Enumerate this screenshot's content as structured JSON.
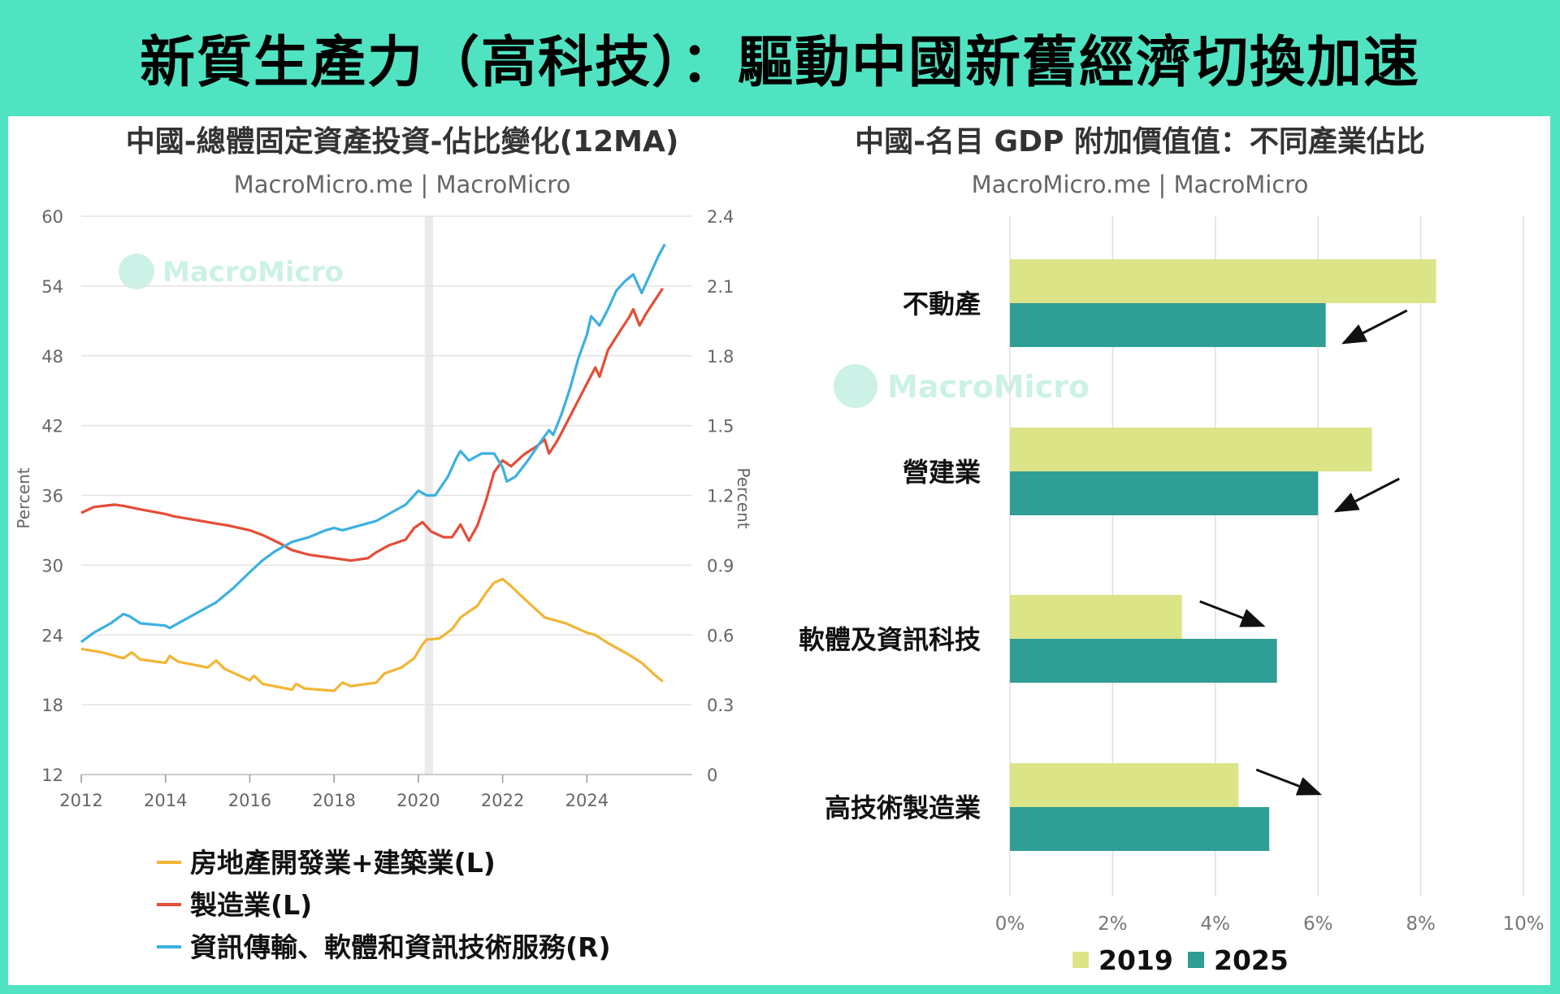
{
  "headline": "新質生產力（高科技）：驅動中國新舊經濟切換加速",
  "chart_data": [
    {
      "type": "line",
      "title": "中國-總體固定資產投資-佔比變化(12MA)",
      "subtitle": "MacroMicro.me | MacroMicro",
      "watermark": "MacroMicro",
      "ylabel_left": "Percent",
      "ylabel_right": "Percent",
      "ylim_left": [
        12,
        60
      ],
      "ylim_right": [
        0,
        2.4
      ],
      "yticks_left": [
        "60",
        "54",
        "48",
        "42",
        "36",
        "30",
        "24",
        "18",
        "12"
      ],
      "yticks_right": [
        "2.4",
        "2.1",
        "1.8",
        "1.5",
        "1.2",
        "0.9",
        "0.6",
        "0.3",
        "0"
      ],
      "xlim": [
        2012,
        2026.5
      ],
      "xticks": [
        "2012",
        "2014",
        "2016",
        "2018",
        "2020",
        "2022",
        "2024"
      ],
      "shaded_region": [
        2020.15,
        2020.35
      ],
      "grid": true,
      "legend_position": "bottom",
      "series": [
        {
          "name": "房地產開發業+建築業(L)",
          "axis": "left",
          "color": "#F2B535",
          "points": [
            [
              2012.0,
              22.8
            ],
            [
              2012.5,
              22.5
            ],
            [
              2013.0,
              22.0
            ],
            [
              2013.2,
              22.5
            ],
            [
              2013.4,
              21.9
            ],
            [
              2014.0,
              21.6
            ],
            [
              2014.1,
              22.2
            ],
            [
              2014.3,
              21.7
            ],
            [
              2015.0,
              21.2
            ],
            [
              2015.2,
              21.8
            ],
            [
              2015.4,
              21.1
            ],
            [
              2016.0,
              20.1
            ],
            [
              2016.1,
              20.5
            ],
            [
              2016.3,
              19.8
            ],
            [
              2017.0,
              19.3
            ],
            [
              2017.1,
              19.8
            ],
            [
              2017.3,
              19.4
            ],
            [
              2018.0,
              19.2
            ],
            [
              2018.2,
              19.9
            ],
            [
              2018.4,
              19.6
            ],
            [
              2019.0,
              19.9
            ],
            [
              2019.2,
              20.7
            ],
            [
              2019.6,
              21.2
            ],
            [
              2019.9,
              22.0
            ],
            [
              2020.1,
              23.2
            ],
            [
              2020.2,
              23.6
            ],
            [
              2020.5,
              23.7
            ],
            [
              2020.8,
              24.5
            ],
            [
              2021.0,
              25.5
            ],
            [
              2021.2,
              26.0
            ],
            [
              2021.4,
              26.5
            ],
            [
              2021.6,
              27.6
            ],
            [
              2021.8,
              28.5
            ],
            [
              2022.0,
              28.8
            ],
            [
              2022.2,
              28.2
            ],
            [
              2022.4,
              27.5
            ],
            [
              2022.7,
              26.5
            ],
            [
              2023.0,
              25.5
            ],
            [
              2023.2,
              25.3
            ],
            [
              2023.5,
              25.0
            ],
            [
              2024.0,
              24.2
            ],
            [
              2024.2,
              24.0
            ],
            [
              2024.5,
              23.3
            ],
            [
              2025.0,
              22.3
            ],
            [
              2025.3,
              21.6
            ],
            [
              2025.6,
              20.6
            ],
            [
              2025.8,
              20.0
            ]
          ]
        },
        {
          "name": "製造業(L)",
          "axis": "left",
          "color": "#E44D37",
          "points": [
            [
              2012.0,
              34.5
            ],
            [
              2012.3,
              35.0
            ],
            [
              2012.8,
              35.2
            ],
            [
              2013.0,
              35.1
            ],
            [
              2013.4,
              34.8
            ],
            [
              2014.0,
              34.4
            ],
            [
              2014.2,
              34.2
            ],
            [
              2015.0,
              33.7
            ],
            [
              2015.5,
              33.4
            ],
            [
              2016.0,
              33.0
            ],
            [
              2016.3,
              32.6
            ],
            [
              2016.7,
              31.9
            ],
            [
              2017.0,
              31.3
            ],
            [
              2017.4,
              30.9
            ],
            [
              2018.0,
              30.6
            ],
            [
              2018.4,
              30.4
            ],
            [
              2018.8,
              30.6
            ],
            [
              2019.0,
              31.1
            ],
            [
              2019.3,
              31.7
            ],
            [
              2019.7,
              32.2
            ],
            [
              2019.9,
              33.2
            ],
            [
              2020.1,
              33.7
            ],
            [
              2020.3,
              32.9
            ],
            [
              2020.6,
              32.4
            ],
            [
              2020.8,
              32.4
            ],
            [
              2021.0,
              33.5
            ],
            [
              2021.2,
              32.1
            ],
            [
              2021.4,
              33.4
            ],
            [
              2021.6,
              35.5
            ],
            [
              2021.8,
              38.0
            ],
            [
              2022.0,
              39.0
            ],
            [
              2022.2,
              38.5
            ],
            [
              2022.5,
              39.5
            ],
            [
              2022.8,
              40.2
            ],
            [
              2023.0,
              40.8
            ],
            [
              2023.1,
              39.6
            ],
            [
              2023.3,
              40.7
            ],
            [
              2023.6,
              42.8
            ],
            [
              2024.0,
              45.6
            ],
            [
              2024.2,
              47.0
            ],
            [
              2024.3,
              46.2
            ],
            [
              2024.5,
              48.5
            ],
            [
              2024.8,
              50.2
            ],
            [
              2025.0,
              51.3
            ],
            [
              2025.1,
              52.0
            ],
            [
              2025.25,
              50.6
            ],
            [
              2025.4,
              51.6
            ],
            [
              2025.6,
              52.7
            ],
            [
              2025.8,
              53.8
            ]
          ]
        },
        {
          "name": "資訊傳輸、軟體和資訊技術服務(R)",
          "axis": "right",
          "color": "#3CB0DF",
          "points": [
            [
              2012.0,
              0.57
            ],
            [
              2012.3,
              0.61
            ],
            [
              2012.7,
              0.65
            ],
            [
              2013.0,
              0.69
            ],
            [
              2013.15,
              0.68
            ],
            [
              2013.4,
              0.65
            ],
            [
              2014.0,
              0.64
            ],
            [
              2014.1,
              0.63
            ],
            [
              2014.3,
              0.65
            ],
            [
              2014.7,
              0.69
            ],
            [
              2015.0,
              0.72
            ],
            [
              2015.2,
              0.74
            ],
            [
              2015.6,
              0.8
            ],
            [
              2016.0,
              0.87
            ],
            [
              2016.3,
              0.92
            ],
            [
              2016.6,
              0.96
            ],
            [
              2017.0,
              1.0
            ],
            [
              2017.4,
              1.02
            ],
            [
              2017.8,
              1.05
            ],
            [
              2018.0,
              1.06
            ],
            [
              2018.2,
              1.05
            ],
            [
              2018.6,
              1.07
            ],
            [
              2019.0,
              1.09
            ],
            [
              2019.3,
              1.12
            ],
            [
              2019.7,
              1.16
            ],
            [
              2020.0,
              1.22
            ],
            [
              2020.2,
              1.2
            ],
            [
              2020.4,
              1.2
            ],
            [
              2020.7,
              1.28
            ],
            [
              2020.9,
              1.36
            ],
            [
              2021.0,
              1.39
            ],
            [
              2021.2,
              1.35
            ],
            [
              2021.5,
              1.38
            ],
            [
              2021.8,
              1.38
            ],
            [
              2022.0,
              1.32
            ],
            [
              2022.1,
              1.26
            ],
            [
              2022.3,
              1.28
            ],
            [
              2022.6,
              1.35
            ],
            [
              2022.9,
              1.43
            ],
            [
              2023.1,
              1.48
            ],
            [
              2023.2,
              1.46
            ],
            [
              2023.4,
              1.55
            ],
            [
              2023.6,
              1.66
            ],
            [
              2023.8,
              1.79
            ],
            [
              2024.0,
              1.89
            ],
            [
              2024.1,
              1.97
            ],
            [
              2024.3,
              1.93
            ],
            [
              2024.5,
              2.0
            ],
            [
              2024.7,
              2.08
            ],
            [
              2024.9,
              2.12
            ],
            [
              2025.1,
              2.15
            ],
            [
              2025.3,
              2.07
            ],
            [
              2025.5,
              2.15
            ],
            [
              2025.7,
              2.23
            ],
            [
              2025.85,
              2.28
            ]
          ]
        }
      ]
    },
    {
      "type": "bar",
      "orientation": "horizontal",
      "title": "中國-名目 GDP 附加價值值：不同產業佔比",
      "subtitle": "MacroMicro.me | MacroMicro",
      "watermark": "MacroMicro",
      "categories": [
        "不動產",
        "營建業",
        "軟體及資訊科技",
        "高技術製造業"
      ],
      "xlim": [
        0,
        10
      ],
      "xticks": [
        "0%",
        "2%",
        "4%",
        "6%",
        "8%",
        "10%"
      ],
      "grid": true,
      "legend_position": "bottom",
      "series": [
        {
          "name": "2019",
          "color": "#DCE488",
          "values": [
            8.3,
            7.05,
            3.35,
            4.45
          ]
        },
        {
          "name": "2025",
          "color": "#2F9E95",
          "values": [
            6.15,
            6.0,
            5.2,
            5.05
          ]
        }
      ],
      "annotations": [
        {
          "type": "arrow",
          "category": "不動產",
          "direction": "down-left"
        },
        {
          "type": "arrow",
          "category": "營建業",
          "direction": "down-left"
        },
        {
          "type": "arrow",
          "category": "軟體及資訊科技",
          "direction": "down-right"
        },
        {
          "type": "arrow",
          "category": "高技術製造業",
          "direction": "down-right"
        }
      ]
    }
  ]
}
